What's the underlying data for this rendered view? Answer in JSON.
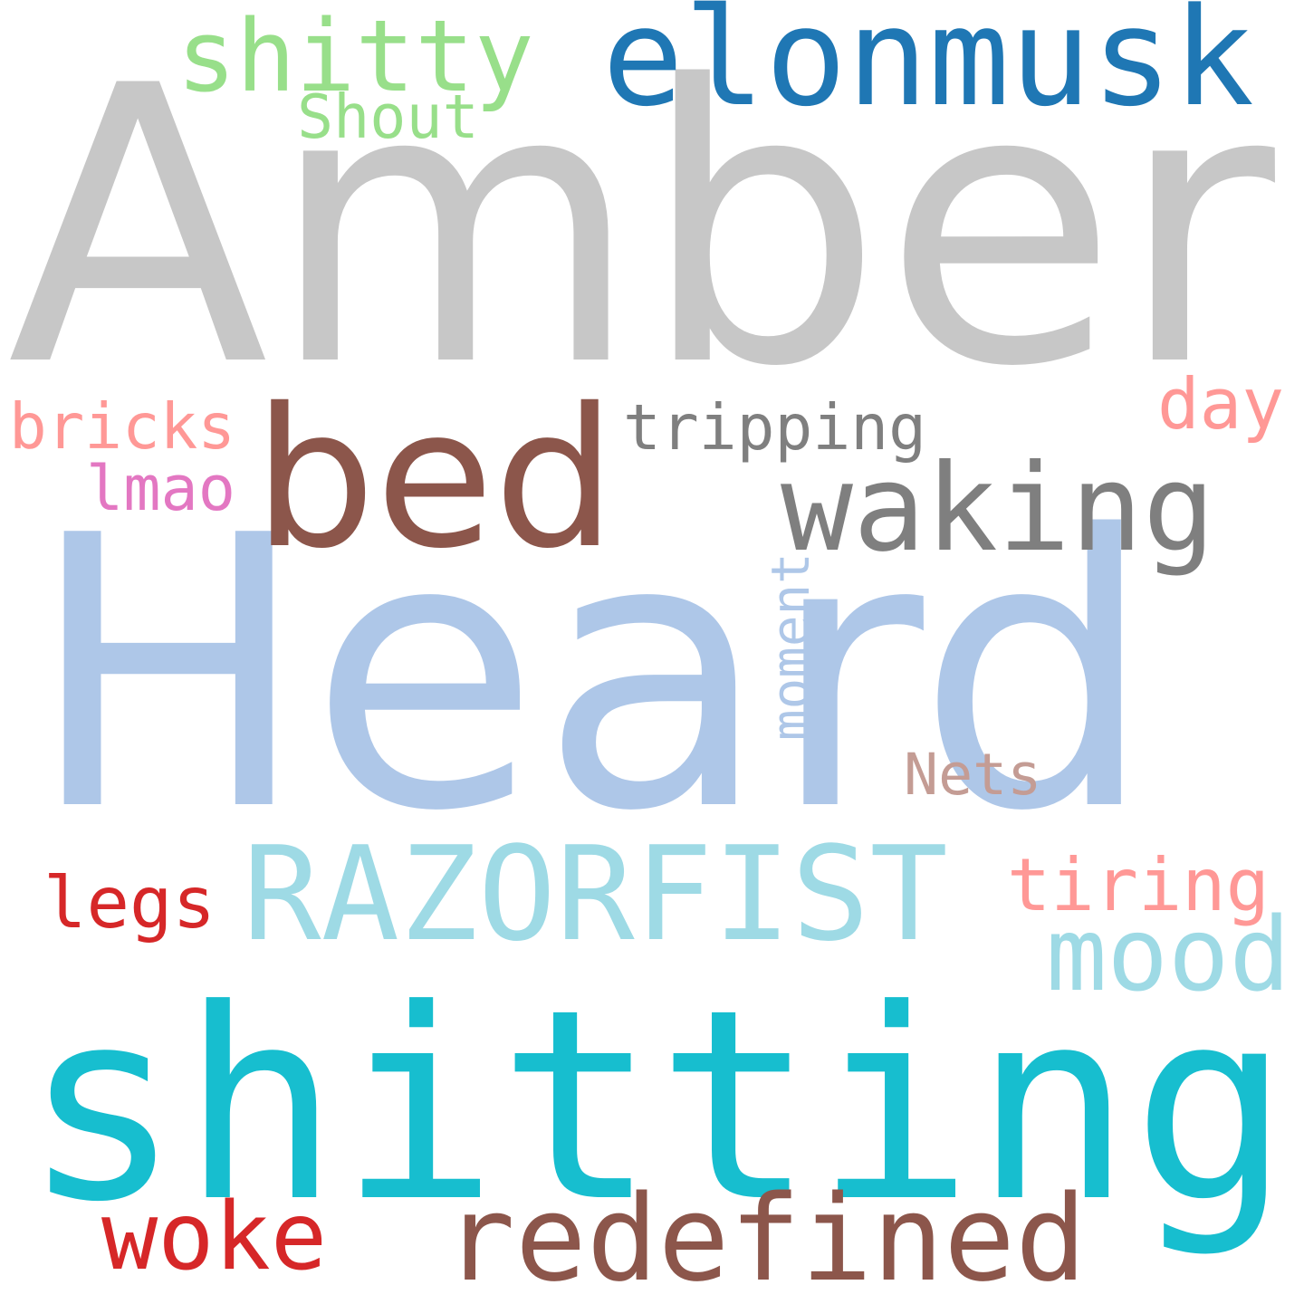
{
  "words": [
    {
      "text": "Amber",
      "color": "#c7c7c7"
    },
    {
      "text": "Heard",
      "color": "#aec7e8"
    },
    {
      "text": "shitting",
      "color": "#17becf"
    },
    {
      "text": "bed",
      "color": "#8c564b"
    },
    {
      "text": "elonmusk",
      "color": "#1f77b4"
    },
    {
      "text": "RAZORFIST",
      "color": "#9edae5"
    },
    {
      "text": "waking",
      "color": "#7f7f7f"
    },
    {
      "text": "redefined",
      "color": "#8c564b"
    },
    {
      "text": "shitty",
      "color": "#98df8a"
    },
    {
      "text": "woke",
      "color": "#d62728"
    },
    {
      "text": "mood",
      "color": "#9edae5"
    },
    {
      "text": "tripping",
      "color": "#7f7f7f"
    },
    {
      "text": "tiring",
      "color": "#ff9896"
    },
    {
      "text": "legs",
      "color": "#d62728"
    },
    {
      "text": "bricks",
      "color": "#ff9896"
    },
    {
      "text": "day",
      "color": "#ff9896"
    },
    {
      "text": "Nets",
      "color": "#c49c94"
    },
    {
      "text": "moment",
      "color": "#aec7e8"
    },
    {
      "text": "Shout",
      "color": "#98df8a"
    },
    {
      "text": "lmao",
      "color": "#e377c2"
    }
  ]
}
